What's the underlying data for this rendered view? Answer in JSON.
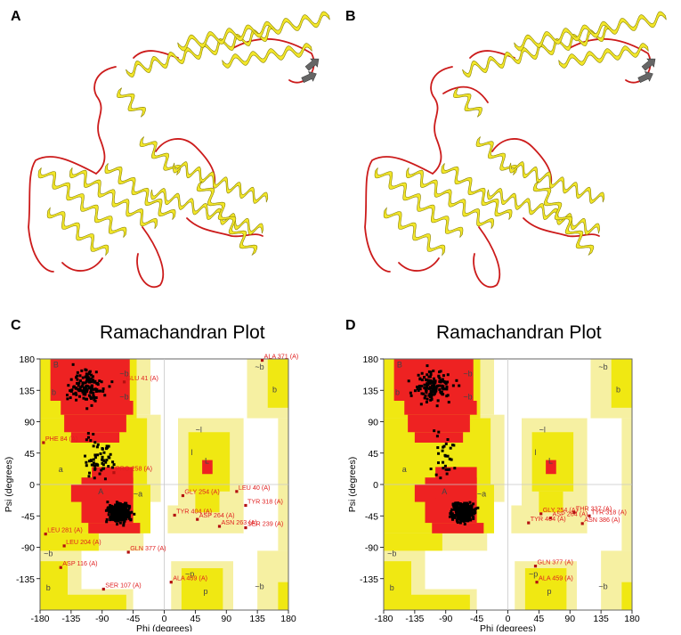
{
  "figure": {
    "panels": [
      {
        "id": "A",
        "letter": "A",
        "kind": "protein-ribbon"
      },
      {
        "id": "B",
        "letter": "B",
        "kind": "protein-ribbon"
      },
      {
        "id": "C",
        "letter": "C",
        "kind": "ramachandran",
        "title": "Ramachandran Plot"
      },
      {
        "id": "D",
        "letter": "D",
        "kind": "ramachandran",
        "title": "Ramachandran Plot"
      }
    ]
  },
  "colors": {
    "helix": "#f2e62a",
    "helix_edge": "#8a8200",
    "coil": "#cc1b1b",
    "strand": "#666666",
    "core": "#ee2222",
    "allowed": "#f0e812",
    "generous": "#f6f0a2",
    "disallowed": "#ffffff",
    "residue": "#000000",
    "outlier_label": "#e02020"
  },
  "chart_data": [
    {
      "type": "scatter",
      "panel": "C",
      "title": "Ramachandran Plot",
      "xlabel": "Phi (degrees)",
      "ylabel": "Psi (degrees)",
      "xlim": [
        -180,
        180
      ],
      "ylim": [
        -180,
        180
      ],
      "xticks": [
        -180,
        -135,
        -90,
        -45,
        0,
        45,
        90,
        135,
        180
      ],
      "yticks": [
        180,
        135,
        90,
        45,
        0,
        -45,
        -90,
        -135
      ],
      "xtick_labels": [
        "-180",
        "-135",
        "-90",
        "-45",
        "0",
        "45",
        "90",
        "135",
        "180"
      ],
      "ytick_labels": [
        "180",
        "135",
        "90",
        "45",
        "0",
        "-45",
        "-90",
        "-135"
      ],
      "region_labels": [
        {
          "text": "B",
          "phi": -157,
          "psi": 168
        },
        {
          "text": "b",
          "phi": -160,
          "psi": 128
        },
        {
          "text": "~b",
          "phi": -58,
          "psi": 155
        },
        {
          "text": "~b",
          "phi": -58,
          "psi": 122
        },
        {
          "text": "a",
          "phi": -150,
          "psi": 18
        },
        {
          "text": "A",
          "phi": -92,
          "psi": -14
        },
        {
          "text": "~a",
          "phi": -38,
          "psi": -17
        },
        {
          "text": "~l",
          "phi": 50,
          "psi": 75
        },
        {
          "text": "l",
          "phi": 40,
          "psi": 42
        },
        {
          "text": "L",
          "phi": 62,
          "psi": 30
        },
        {
          "text": "~b",
          "phi": 138,
          "psi": 165
        },
        {
          "text": "b",
          "phi": 160,
          "psi": 132
        },
        {
          "text": "b",
          "phi": -168,
          "psi": -152
        },
        {
          "text": "~p",
          "phi": 37,
          "psi": -132
        },
        {
          "text": "p",
          "phi": 60,
          "psi": -157
        },
        {
          "text": "~b",
          "phi": 138,
          "psi": -150
        },
        {
          "text": "~b",
          "phi": -168,
          "psi": -103
        }
      ],
      "labeled_residues": [
        {
          "label": "GLU 41 (A)",
          "phi": -58,
          "psi": 147
        },
        {
          "label": "ALA 371 (A)",
          "phi": 142,
          "psi": 178
        },
        {
          "label": "PHE 84 (A)",
          "phi": -175,
          "psi": 60
        },
        {
          "label": "PRO 258 (A)",
          "phi": -73,
          "psi": 17
        },
        {
          "label": "LEU 40 (A)",
          "phi": 105,
          "psi": -10
        },
        {
          "label": "GLY 254 (A)",
          "phi": 27,
          "psi": -16
        },
        {
          "label": "TYR 318 (A)",
          "phi": 118,
          "psi": -30
        },
        {
          "label": "TYR 404 (A)",
          "phi": 15,
          "psi": -44
        },
        {
          "label": "ASP 264 (A)",
          "phi": 48,
          "psi": -50
        },
        {
          "label": "ASN 263 (A)",
          "phi": 80,
          "psi": -60
        },
        {
          "label": "SER 239 (A)",
          "phi": 118,
          "psi": -62
        },
        {
          "label": "LEU 281 (A)",
          "phi": -172,
          "psi": -71
        },
        {
          "label": "LEU 204 (A)",
          "phi": -145,
          "psi": -88
        },
        {
          "label": "GLN 377 (A)",
          "phi": -52,
          "psi": -97
        },
        {
          "label": "ASP 116 (A)",
          "phi": -150,
          "psi": -119
        },
        {
          "label": "ALA 459 (A)",
          "phi": 10,
          "psi": -140
        },
        {
          "label": "SER 107 (A)",
          "phi": -88,
          "psi": -150
        }
      ],
      "cluster_points": [
        {
          "region": "alpha",
          "phi_center": -65,
          "psi_center": -40,
          "count": 420
        },
        {
          "region": "beta",
          "phi_center": -110,
          "psi_center": 140,
          "count": 130
        },
        {
          "region": "bridge",
          "phi_center": -95,
          "psi_center": 40,
          "count": 60
        }
      ]
    },
    {
      "type": "scatter",
      "panel": "D",
      "title": "Ramachandran Plot",
      "xlabel": "Phi (degrees)",
      "ylabel": "Psi (degrees)",
      "xlim": [
        -180,
        180
      ],
      "ylim": [
        -180,
        180
      ],
      "xticks": [
        -180,
        -135,
        -90,
        -45,
        0,
        45,
        90,
        135,
        180
      ],
      "yticks": [
        180,
        135,
        90,
        45,
        0,
        -45,
        -90,
        -135
      ],
      "xtick_labels": [
        "-180",
        "-135",
        "-90",
        "-45",
        "0",
        "45",
        "90",
        "135",
        "180"
      ],
      "ytick_labels": [
        "180",
        "135",
        "90",
        "45",
        "0",
        "-45",
        "-90",
        "-135"
      ],
      "region_labels": [
        {
          "text": "B",
          "phi": -157,
          "psi": 168
        },
        {
          "text": "b",
          "phi": -160,
          "psi": 128
        },
        {
          "text": "~b",
          "phi": -58,
          "psi": 155
        },
        {
          "text": "~b",
          "phi": -58,
          "psi": 122
        },
        {
          "text": "a",
          "phi": -150,
          "psi": 18
        },
        {
          "text": "A",
          "phi": -92,
          "psi": -14
        },
        {
          "text": "~a",
          "phi": -38,
          "psi": -17
        },
        {
          "text": "~l",
          "phi": 50,
          "psi": 75
        },
        {
          "text": "l",
          "phi": 40,
          "psi": 42
        },
        {
          "text": "L",
          "phi": 62,
          "psi": 30
        },
        {
          "text": "~b",
          "phi": 138,
          "psi": 165
        },
        {
          "text": "b",
          "phi": 160,
          "psi": 132
        },
        {
          "text": "b",
          "phi": -168,
          "psi": -152
        },
        {
          "text": "~p",
          "phi": 37,
          "psi": -132
        },
        {
          "text": "p",
          "phi": 60,
          "psi": -157
        },
        {
          "text": "~b",
          "phi": 138,
          "psi": -150
        },
        {
          "text": "~b",
          "phi": -168,
          "psi": -103
        }
      ],
      "labeled_residues": [
        {
          "label": "GLY 254 (A)",
          "phi": 48,
          "psi": -42
        },
        {
          "label": "ASP 264 (A)",
          "phi": 62,
          "psi": -48
        },
        {
          "label": "THR 337 (A)",
          "phi": 96,
          "psi": -40
        },
        {
          "label": "TYR 318 (A)",
          "phi": 118,
          "psi": -45
        },
        {
          "label": "TYR 404 (A)",
          "phi": 30,
          "psi": -55
        },
        {
          "label": "ASN 386 (A)",
          "phi": 108,
          "psi": -56
        },
        {
          "label": "GLN 377 (A)",
          "phi": 40,
          "psi": -117
        },
        {
          "label": "ALA 459 (A)",
          "phi": 42,
          "psi": -140
        }
      ],
      "cluster_points": [
        {
          "region": "alpha",
          "phi_center": -65,
          "psi_center": -40,
          "count": 420
        },
        {
          "region": "beta",
          "phi_center": -110,
          "psi_center": 140,
          "count": 130
        },
        {
          "region": "bridge",
          "phi_center": -95,
          "psi_center": 40,
          "count": 30
        }
      ]
    }
  ]
}
